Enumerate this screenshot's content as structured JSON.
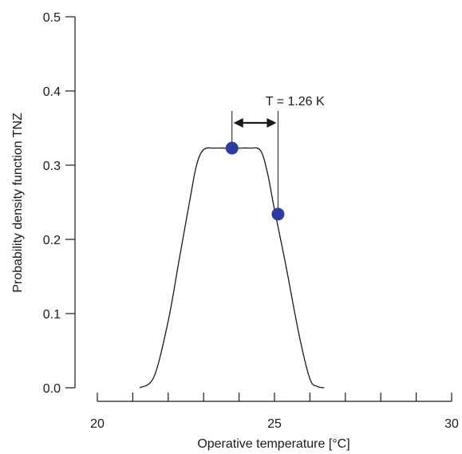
{
  "chart_data": {
    "type": "line",
    "xlabel": "Operative temperature [°C]",
    "ylabel": "Probability density function TNZ",
    "xlim": [
      20,
      30
    ],
    "ylim": [
      0,
      0.5
    ],
    "xticks": [
      20,
      25,
      30
    ],
    "yticks": [
      0.0,
      0.1,
      0.2,
      0.3,
      0.4,
      0.5
    ],
    "ytick_labels": [
      "0.0",
      "0.1",
      "0.2",
      "0.3",
      "0.4",
      "0.5"
    ],
    "grid": false,
    "curve": {
      "x": [
        21.2,
        21.6,
        22.0,
        22.3,
        22.6,
        22.8,
        23.0,
        23.3,
        23.7,
        24.0,
        24.3,
        24.6,
        24.8,
        25.0,
        25.3,
        25.7,
        26.0,
        26.2,
        26.4
      ],
      "y": [
        0.0,
        0.015,
        0.09,
        0.17,
        0.25,
        0.3,
        0.321,
        0.323,
        0.323,
        0.323,
        0.323,
        0.32,
        0.29,
        0.24,
        0.17,
        0.07,
        0.012,
        0.002,
        0.0
      ]
    },
    "points": [
      {
        "x": 23.8,
        "y": 0.323
      },
      {
        "x": 25.1,
        "y": 0.234
      }
    ],
    "annotation": {
      "text": "T = 1.26 K",
      "x_start": 23.8,
      "x_end": 25.1,
      "y": 0.357
    },
    "colors": {
      "line": "#1a1a1a",
      "point": "#2e3c9e"
    }
  }
}
